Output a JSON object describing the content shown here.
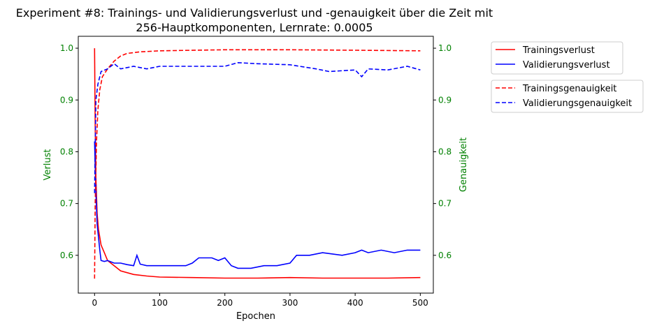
{
  "chart_data": {
    "type": "line",
    "title": "Experiment #8: Trainings- und Validierungsverlust und -genauigkeit über die Zeit mit\n256-Hauptkomponenten, Lernrate: 0.0005",
    "title_lines": [
      "Experiment #8: Trainings- und Validierungsverlust und -genauigkeit über die Zeit mit",
      "256-Hauptkomponenten, Lernrate: 0.0005"
    ],
    "xlabel": "Epochen",
    "ylabel": "Verlust",
    "ylabel_right": "Genauigkeit",
    "xlim": [
      -25,
      520
    ],
    "ylim": [
      0.527,
      1.023
    ],
    "ylim_right": [
      0.527,
      1.023
    ],
    "xticks": [
      "0",
      "100",
      "200",
      "300",
      "400",
      "500"
    ],
    "yticks": [
      "0.6",
      "0.7",
      "0.8",
      "0.9",
      "1.0"
    ],
    "yticks_right": [
      "0.6",
      "0.7",
      "0.8",
      "0.9",
      "1.0"
    ],
    "axis_label_color": "#008000",
    "grid": false,
    "legend_placement": "outside-top-right",
    "series": [
      {
        "name": "Trainingsverlust",
        "axis": "left",
        "color": "#ff0000",
        "style": "solid",
        "x": [
          0,
          1,
          2,
          4,
          6,
          10,
          15,
          20,
          30,
          40,
          60,
          80,
          100,
          150,
          200,
          250,
          300,
          350,
          400,
          450,
          500
        ],
        "y": [
          1.0,
          0.85,
          0.75,
          0.68,
          0.65,
          0.62,
          0.605,
          0.59,
          0.58,
          0.57,
          0.563,
          0.56,
          0.558,
          0.557,
          0.556,
          0.556,
          0.557,
          0.556,
          0.556,
          0.556,
          0.557
        ]
      },
      {
        "name": "Validierungsverlust",
        "axis": "left",
        "color": "#0000ff",
        "style": "solid",
        "x": [
          0,
          2,
          4,
          8,
          10,
          15,
          20,
          30,
          40,
          50,
          60,
          65,
          70,
          80,
          100,
          130,
          140,
          150,
          160,
          170,
          180,
          190,
          200,
          210,
          220,
          240,
          260,
          280,
          300,
          310,
          330,
          350,
          380,
          400,
          410,
          420,
          440,
          460,
          480,
          500
        ],
        "y": [
          0.82,
          0.72,
          0.66,
          0.61,
          0.59,
          0.588,
          0.59,
          0.585,
          0.585,
          0.582,
          0.58,
          0.6,
          0.583,
          0.58,
          0.58,
          0.58,
          0.58,
          0.585,
          0.595,
          0.595,
          0.595,
          0.59,
          0.595,
          0.58,
          0.575,
          0.575,
          0.58,
          0.58,
          0.585,
          0.6,
          0.6,
          0.605,
          0.6,
          0.605,
          0.61,
          0.605,
          0.61,
          0.605,
          0.61,
          0.61
        ]
      },
      {
        "name": "Trainingsgenauigkeit",
        "axis": "right",
        "color": "#ff0000",
        "style": "dashed",
        "x": [
          0,
          1,
          3,
          5,
          8,
          12,
          20,
          30,
          40,
          50,
          70,
          100,
          200,
          300,
          400,
          500
        ],
        "y": [
          0.555,
          0.7,
          0.82,
          0.88,
          0.92,
          0.945,
          0.96,
          0.975,
          0.985,
          0.99,
          0.993,
          0.995,
          0.997,
          0.997,
          0.996,
          0.995
        ]
      },
      {
        "name": "Validierungsgenauigkeit",
        "axis": "right",
        "color": "#0000ff",
        "style": "dashed",
        "x": [
          0,
          2,
          5,
          10,
          20,
          30,
          40,
          60,
          80,
          100,
          150,
          200,
          220,
          250,
          300,
          340,
          360,
          400,
          410,
          420,
          450,
          480,
          500
        ],
        "y": [
          0.72,
          0.9,
          0.93,
          0.955,
          0.96,
          0.97,
          0.96,
          0.965,
          0.96,
          0.965,
          0.965,
          0.965,
          0.972,
          0.97,
          0.968,
          0.96,
          0.955,
          0.958,
          0.945,
          0.96,
          0.958,
          0.965,
          0.958
        ]
      }
    ]
  }
}
